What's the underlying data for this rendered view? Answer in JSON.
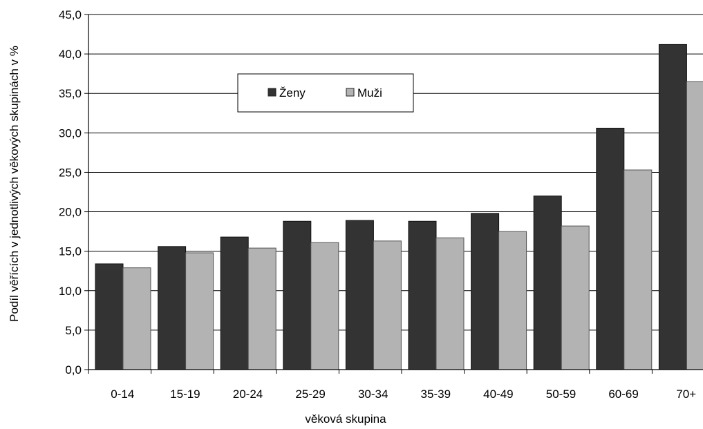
{
  "chart_data": {
    "type": "bar",
    "title": "",
    "xlabel": "věková skupina",
    "ylabel": "Podíl věřících v jednotlivých věkových skupinách v %",
    "categories": [
      "0-14",
      "15-19",
      "20-24",
      "25-29",
      "30-34",
      "35-39",
      "40-49",
      "50-59",
      "60-69",
      "70+"
    ],
    "series": [
      {
        "name": "Ženy",
        "color": "#333333",
        "values": [
          13.4,
          15.6,
          16.8,
          18.8,
          18.9,
          18.8,
          19.8,
          22.0,
          30.6,
          41.2
        ]
      },
      {
        "name": "Muži",
        "color": "#b3b3b3",
        "values": [
          12.9,
          14.8,
          15.4,
          16.1,
          16.3,
          16.7,
          17.5,
          18.2,
          25.3,
          36.5
        ]
      }
    ],
    "ylim": [
      0,
      45
    ],
    "ytick_step": 5,
    "ytick_labels": [
      "0,0",
      "5,0",
      "10,0",
      "15,0",
      "20,0",
      "25,0",
      "30,0",
      "35,0",
      "40,0",
      "45,0"
    ],
    "grid": true,
    "legend_position": "top-left inside plot"
  }
}
